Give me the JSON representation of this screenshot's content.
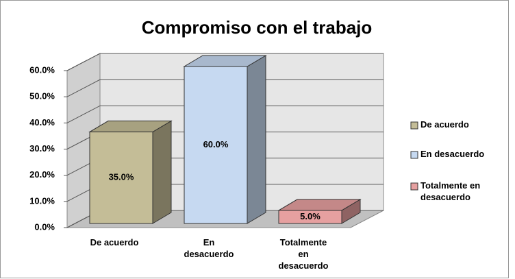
{
  "chart_data": {
    "type": "bar3d",
    "title": "Compromiso con el trabajo",
    "categories": [
      "De acuerdo",
      "En desacuerdo",
      "Totalmente en desacuerdo"
    ],
    "values": [
      35,
      60,
      5
    ],
    "value_labels": [
      "35.0%",
      "60.0%",
      "5.0%"
    ],
    "colors": [
      "#c4bd97",
      "#c6d9f1",
      "#e6a0a0"
    ],
    "ylim": [
      0,
      60
    ],
    "yticks": [
      {
        "value": 0,
        "label": "0.0%"
      },
      {
        "value": 10,
        "label": "10.0%"
      },
      {
        "value": 20,
        "label": "20.0%"
      },
      {
        "value": 30,
        "label": "30.0%"
      },
      {
        "value": 40,
        "label": "40.0%"
      },
      {
        "value": 50,
        "label": "50.0%"
      },
      {
        "value": 60,
        "label": "60.0%"
      }
    ],
    "grid": true,
    "legend": "right"
  }
}
